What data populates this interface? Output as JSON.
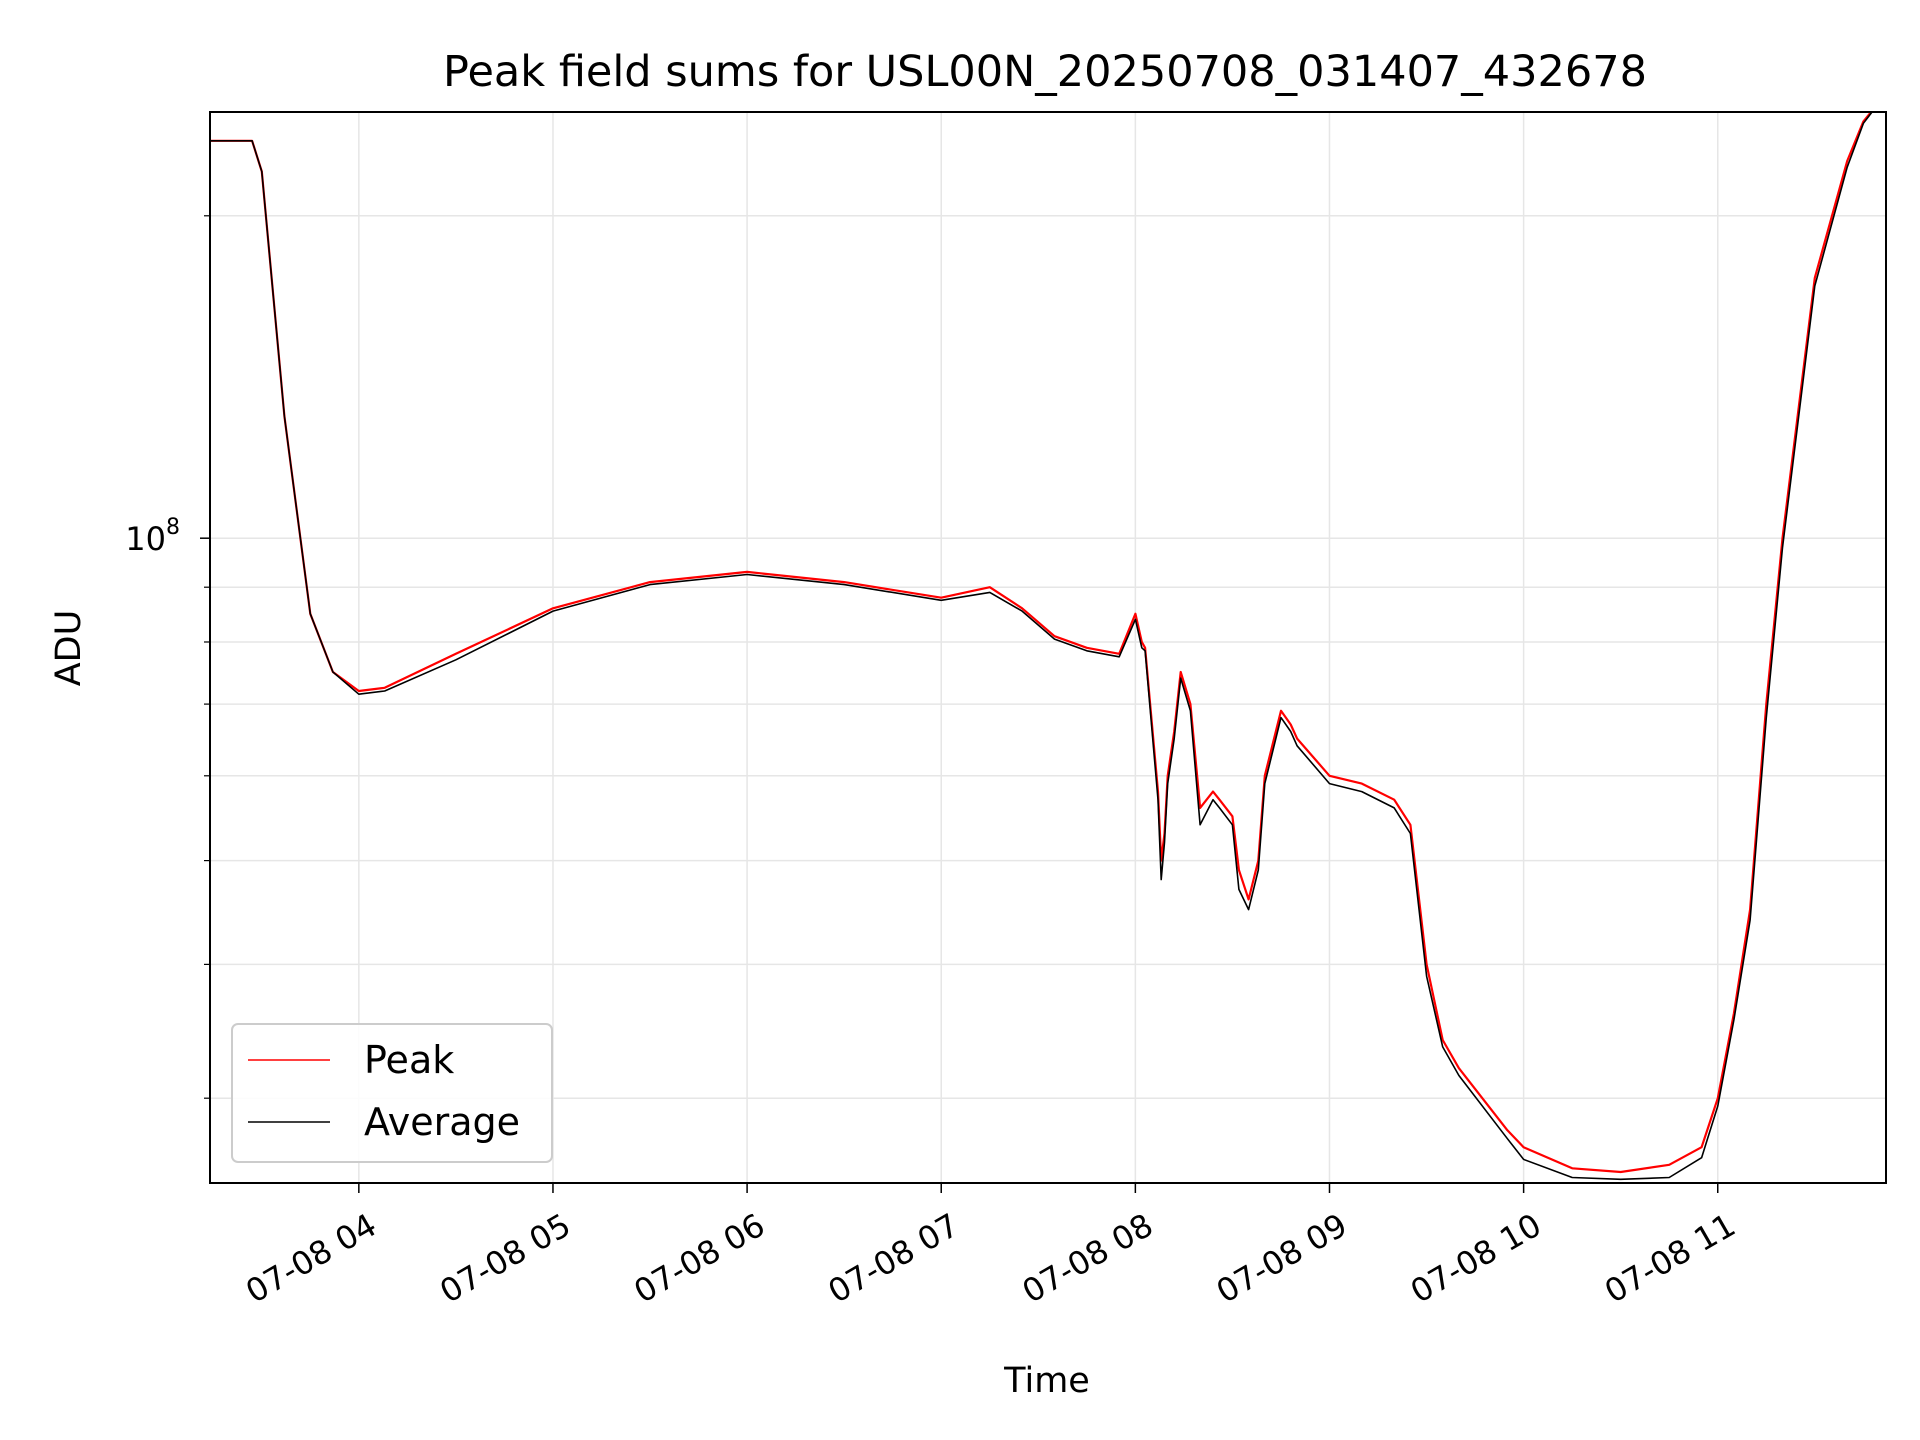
{
  "chart_data": {
    "type": "line",
    "title": "Peak field sums for USL00N_20250708_031407_432678",
    "xlabel": "Time",
    "ylabel": "ADU",
    "y_scale": "log",
    "ylim": [
      25000000,
      250000000
    ],
    "xlim": [
      "2025-07-08 03:14",
      "2025-07-08 11:52"
    ],
    "grid": true,
    "legend_position": "lower-left",
    "x_tick_labels": [
      "07-08 04",
      "07-08 05",
      "07-08 06",
      "07-08 07",
      "07-08 08",
      "07-08 09",
      "07-08 10",
      "07-08 11"
    ],
    "x_ticks": [
      "2025-07-08 04:00",
      "2025-07-08 05:00",
      "2025-07-08 06:00",
      "2025-07-08 07:00",
      "2025-07-08 08:00",
      "2025-07-08 09:00",
      "2025-07-08 10:00",
      "2025-07-08 11:00"
    ],
    "y_tick_labels": [
      {
        "base": "10",
        "exp": "8",
        "value": 100000000
      }
    ],
    "y_minor_ticks": [
      30000000,
      40000000,
      50000000,
      60000000,
      70000000,
      80000000,
      90000000,
      200000000
    ],
    "x": [
      "2025-07-08 03:14",
      "2025-07-08 03:27",
      "2025-07-08 03:30",
      "2025-07-08 03:37",
      "2025-07-08 03:45",
      "2025-07-08 03:52",
      "2025-07-08 04:00",
      "2025-07-08 04:08",
      "2025-07-08 04:30",
      "2025-07-08 05:00",
      "2025-07-08 05:30",
      "2025-07-08 06:00",
      "2025-07-08 06:30",
      "2025-07-08 07:00",
      "2025-07-08 07:15",
      "2025-07-08 07:25",
      "2025-07-08 07:35",
      "2025-07-08 07:45",
      "2025-07-08 07:55",
      "2025-07-08 08:00",
      "2025-07-08 08:02",
      "2025-07-08 08:03",
      "2025-07-08 08:07",
      "2025-07-08 08:08",
      "2025-07-08 08:09",
      "2025-07-08 08:10",
      "2025-07-08 08:12",
      "2025-07-08 08:14",
      "2025-07-08 08:17",
      "2025-07-08 08:20",
      "2025-07-08 08:24",
      "2025-07-08 08:26",
      "2025-07-08 08:30",
      "2025-07-08 08:32",
      "2025-07-08 08:35",
      "2025-07-08 08:38",
      "2025-07-08 08:40",
      "2025-07-08 08:45",
      "2025-07-08 08:48",
      "2025-07-08 08:50",
      "2025-07-08 09:00",
      "2025-07-08 09:10",
      "2025-07-08 09:20",
      "2025-07-08 09:25",
      "2025-07-08 09:30",
      "2025-07-08 09:35",
      "2025-07-08 09:40",
      "2025-07-08 09:55",
      "2025-07-08 10:00",
      "2025-07-08 10:15",
      "2025-07-08 10:30",
      "2025-07-08 10:45",
      "2025-07-08 10:55",
      "2025-07-08 11:00",
      "2025-07-08 11:05",
      "2025-07-08 11:10",
      "2025-07-08 11:15",
      "2025-07-08 11:20",
      "2025-07-08 11:30",
      "2025-07-08 11:40",
      "2025-07-08 11:45",
      "2025-07-08 11:52"
    ],
    "series": [
      {
        "name": "Peak",
        "color": "#ff0000",
        "values": [
          235000000,
          235000000,
          220000000,
          130000000,
          85000000,
          75000000,
          72000000,
          72500000,
          78000000,
          86000000,
          91000000,
          93000000,
          91000000,
          88000000,
          90000000,
          86000000,
          81000000,
          79000000,
          78000000,
          85000000,
          80000000,
          79000000,
          58000000,
          50000000,
          53000000,
          60000000,
          66000000,
          75000000,
          70000000,
          56000000,
          58000000,
          57000000,
          55000000,
          49000000,
          46000000,
          50000000,
          60000000,
          69000000,
          67000000,
          65000000,
          60000000,
          59000000,
          57000000,
          54000000,
          40000000,
          34000000,
          32000000,
          28000000,
          27000000,
          25800000,
          25600000,
          26000000,
          27000000,
          30000000,
          36000000,
          45000000,
          70000000,
          100000000,
          175000000,
          225000000,
          245000000,
          260000000
        ]
      },
      {
        "name": "Average",
        "color": "#000000",
        "values": [
          235000000,
          235000000,
          220000000,
          130000000,
          85000000,
          75000000,
          71500000,
          72000000,
          77000000,
          85500000,
          90500000,
          92500000,
          90500000,
          87500000,
          89000000,
          85500000,
          80500000,
          78500000,
          77500000,
          84000000,
          79000000,
          78500000,
          57000000,
          48000000,
          52000000,
          59000000,
          65000000,
          74000000,
          69000000,
          54000000,
          57000000,
          56000000,
          54000000,
          47000000,
          45000000,
          49000000,
          59000000,
          68000000,
          66000000,
          64000000,
          59000000,
          58000000,
          56000000,
          53000000,
          39000000,
          33500000,
          31500000,
          27500000,
          26300000,
          25300000,
          25200000,
          25300000,
          26400000,
          29500000,
          35500000,
          44000000,
          68000000,
          98000000,
          172000000,
          222000000,
          244000000,
          260000000
        ]
      }
    ]
  }
}
